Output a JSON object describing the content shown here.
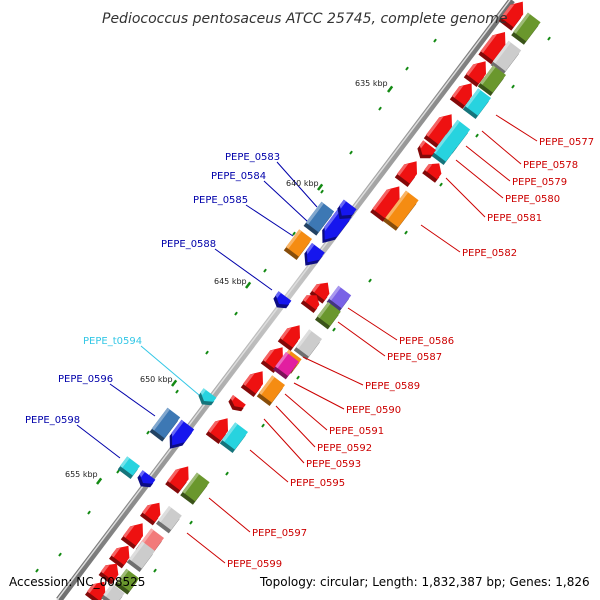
{
  "title": "Pediococcus pentosaceus ATCC 25745, complete genome",
  "footer": {
    "accession": "Accession: NC_008525",
    "topology": "Topology: circular; Length: 1,832,387 bp; Genes: 1,826"
  },
  "colors": {
    "background": "#ffffff",
    "backbone": "#8c8c8c",
    "tick": "#138a13",
    "cds_red": "#ee1111",
    "blue": "#1616ee",
    "steel_blue": "#3d78b4",
    "cyan": "#27d3df",
    "olive": "#6a972d",
    "orange": "#f58c12",
    "grey": "#cccccc",
    "purple": "#7a62e6",
    "pink": "#f27a7a",
    "magenta": "#e21fa0",
    "label_red": "#cc0000",
    "label_blue": "#0000aa",
    "label_cyan": "#33c7e6"
  },
  "scale_labels": [
    "635 kbp",
    "640 kbp",
    "645 kbp",
    "650 kbp",
    "655 kbp"
  ],
  "gene_labels_right": [
    "PEPE_0577",
    "PEPE_0578",
    "PEPE_0579",
    "PEPE_0580",
    "PEPE_0581",
    "PEPE_0582",
    "PEPE_0586",
    "PEPE_0587",
    "PEPE_0589",
    "PEPE_0590",
    "PEPE_0591",
    "PEPE_0592",
    "PEPE_0593",
    "PEPE_0595",
    "PEPE_0597",
    "PEPE_0599"
  ],
  "gene_labels_left": [
    "PEPE_0583",
    "PEPE_0584",
    "PEPE_0585",
    "PEPE_0588",
    "PEPE_t0594",
    "PEPE_0596",
    "PEPE_0598"
  ]
}
